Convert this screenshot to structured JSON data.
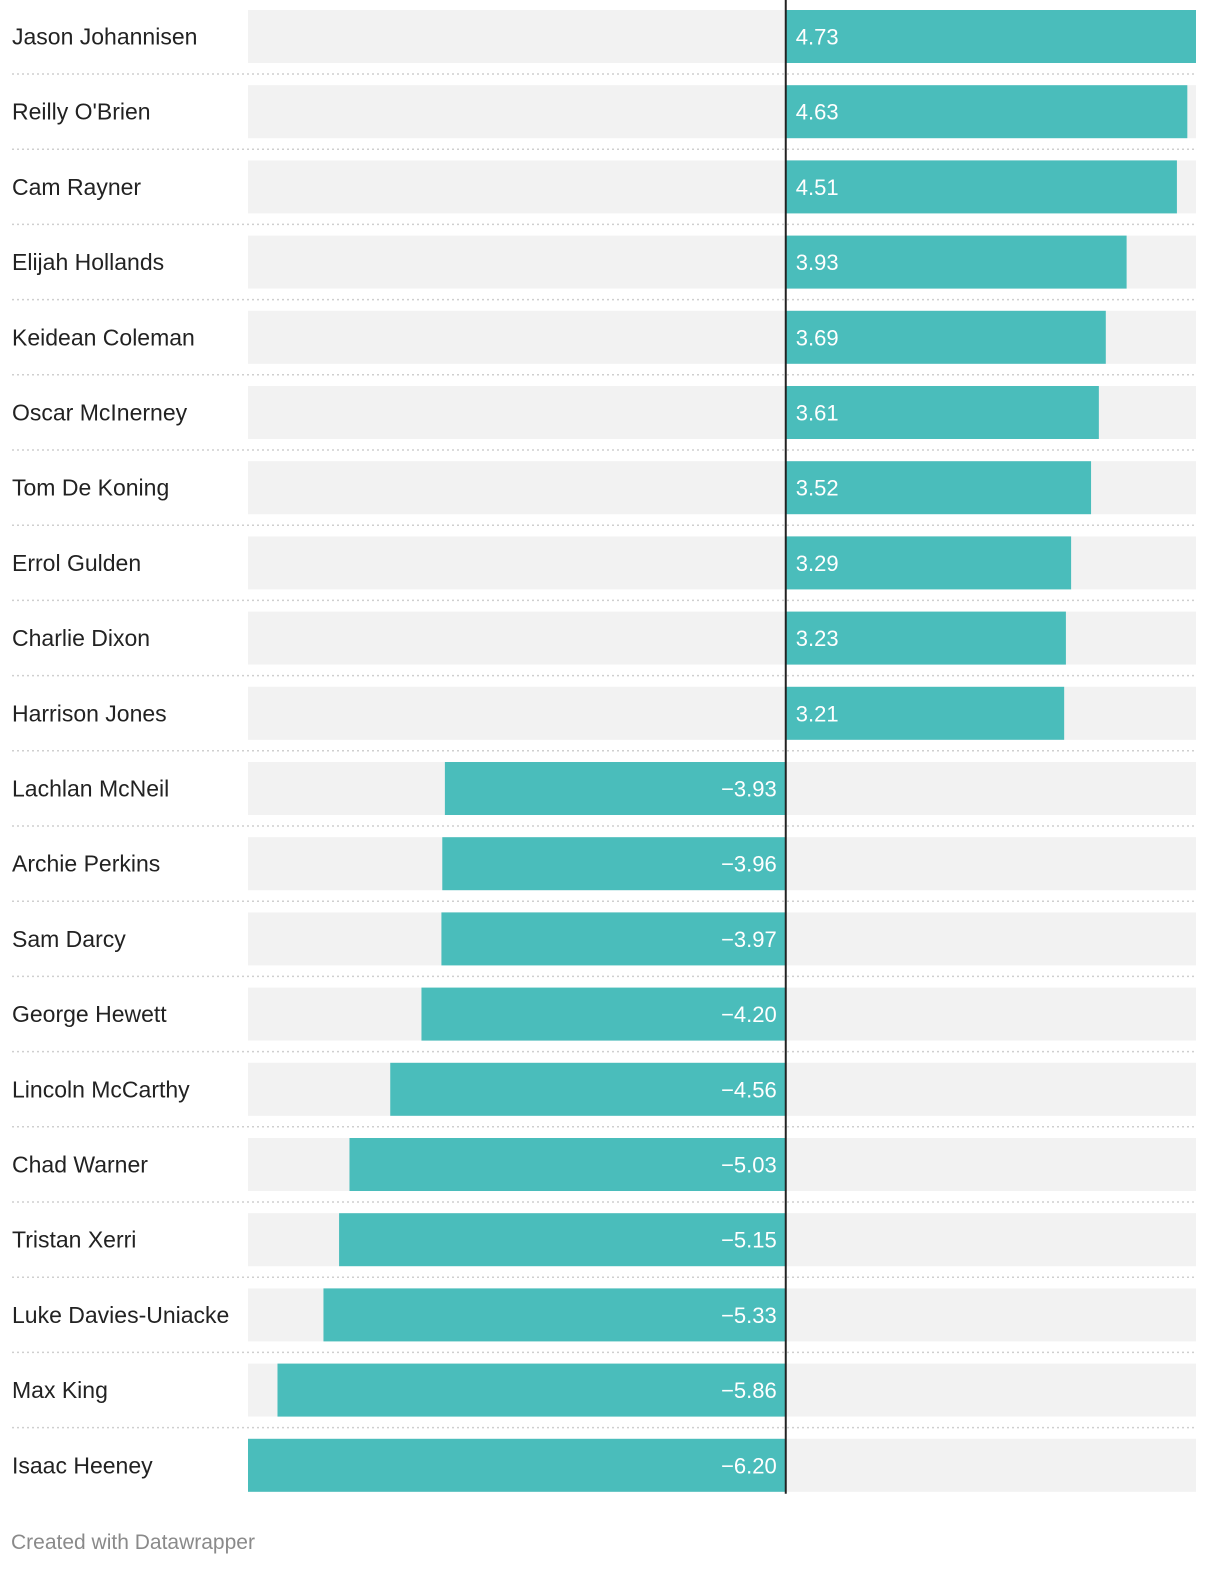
{
  "chart_data": {
    "type": "bar",
    "orientation": "horizontal",
    "categories": [
      "Jason Johannisen",
      "Reilly O'Brien",
      "Cam Rayner",
      "Elijah Hollands",
      "Keidean Coleman",
      "Oscar McInerney",
      "Tom De Koning",
      "Errol Gulden",
      "Charlie Dixon",
      "Harrison Jones",
      "Lachlan McNeil",
      "Archie Perkins",
      "Sam Darcy",
      "George Hewett",
      "Lincoln McCarthy",
      "Chad Warner",
      "Tristan Xerri",
      "Luke Davies-Uniacke",
      "Max King",
      "Isaac Heeney"
    ],
    "values": [
      4.73,
      4.63,
      4.51,
      3.93,
      3.69,
      3.61,
      3.52,
      3.29,
      3.23,
      3.21,
      -3.93,
      -3.96,
      -3.97,
      -4.2,
      -4.56,
      -5.03,
      -5.15,
      -5.33,
      -5.86,
      -6.2
    ],
    "value_labels": [
      "4.73",
      "4.63",
      "4.51",
      "3.93",
      "3.69",
      "3.61",
      "3.52",
      "3.29",
      "3.23",
      "3.21",
      "−3.93",
      "−3.96",
      "−3.97",
      "−4.20",
      "−4.56",
      "−5.03",
      "−5.15",
      "−5.33",
      "−5.86",
      "−6.20"
    ],
    "xlim": [
      -6.2,
      4.73
    ],
    "title": "",
    "xlabel": "",
    "ylabel": "",
    "bar_color": "#4abdbb",
    "track_color": "#f2f2f2",
    "zero_line_color": "#222222"
  },
  "footer": {
    "credit": "Created with Datawrapper"
  }
}
